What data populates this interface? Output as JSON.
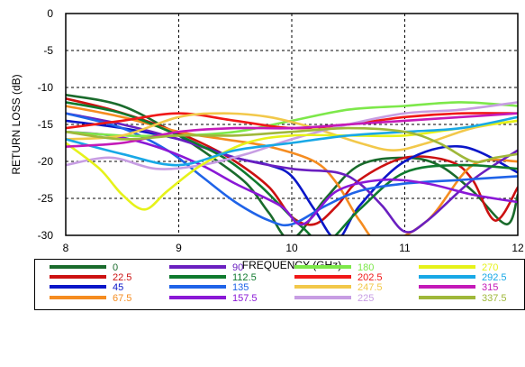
{
  "chart_data": {
    "type": "line",
    "xlabel": "FREQUENCY (GHz)",
    "ylabel": "RETURN LOSS  (dB)",
    "xlim": [
      8,
      12
    ],
    "ylim": [
      -30,
      0
    ],
    "xticks": [
      8,
      9,
      10,
      11,
      12
    ],
    "yticks": [
      0,
      -5,
      -10,
      -15,
      -20,
      -25,
      -30
    ],
    "grid": "dashed",
    "legend_position": "bottom",
    "series": [
      {
        "name": "0",
        "color": "#1a6b2c",
        "x": [
          8,
          8.5,
          9,
          9.3,
          9.6,
          9.8,
          10,
          10.3,
          10.6,
          11,
          11.3,
          11.6,
          11.9,
          12
        ],
        "y": [
          -11,
          -12.5,
          -16.5,
          -19.5,
          -23,
          -27,
          -30.5,
          -25,
          -20.5,
          -19.5,
          -20.5,
          -24,
          -28.5,
          -24.5
        ]
      },
      {
        "name": "22.5",
        "color": "#cc1111",
        "x": [
          8,
          8.4,
          8.8,
          9.2,
          9.5,
          9.8,
          10,
          10.2,
          10.4,
          10.6,
          11,
          11.4,
          11.6,
          11.8,
          12
        ],
        "y": [
          -11.5,
          -13,
          -15,
          -17.5,
          -20,
          -23.5,
          -27.5,
          -28.5,
          -26,
          -22.5,
          -19.5,
          -20,
          -22.5,
          -28,
          -23.5
        ]
      },
      {
        "name": "45",
        "color": "#0a16c8",
        "x": [
          8,
          8.5,
          9,
          9.5,
          9.8,
          10,
          10.2,
          10.4,
          10.6,
          11,
          11.5,
          12
        ],
        "y": [
          -14.5,
          -15.5,
          -17,
          -19.5,
          -20.5,
          -22,
          -26.5,
          -30.5,
          -26,
          -20,
          -18,
          -21.5
        ]
      },
      {
        "name": "67.5",
        "color": "#f58c20",
        "x": [
          8,
          8.5,
          9,
          9.4,
          9.8,
          10.2,
          10.4,
          10.6,
          10.8,
          11.2,
          11.6,
          12
        ],
        "y": [
          -12.5,
          -14,
          -16,
          -17,
          -18,
          -20,
          -23,
          -28,
          -31,
          -28,
          -20.5,
          -20
        ]
      },
      {
        "name": "90",
        "color": "#6a1fc0",
        "x": [
          8,
          8.5,
          9,
          9.5,
          10,
          10.4,
          10.6,
          10.8,
          11,
          11.2,
          11.6,
          12
        ],
        "y": [
          -13.5,
          -15,
          -17,
          -19.5,
          -21,
          -21.5,
          -23,
          -26,
          -29.5,
          -28,
          -22.5,
          -18.5
        ]
      },
      {
        "name": "112.5",
        "color": "#0f7a2e",
        "x": [
          8,
          8.5,
          9,
          9.4,
          9.7,
          9.9,
          10.1,
          10.3,
          10.6,
          11,
          11.5,
          12
        ],
        "y": [
          -12,
          -13.5,
          -16.5,
          -19.5,
          -23,
          -26,
          -29,
          -31,
          -26.5,
          -21.5,
          -20.5,
          -21
        ]
      },
      {
        "name": "135",
        "color": "#1f63e8",
        "x": [
          8,
          8.5,
          8.9,
          9.2,
          9.5,
          9.8,
          10,
          10.3,
          10.6,
          11,
          11.5,
          12
        ],
        "y": [
          -13.5,
          -15.5,
          -18.5,
          -22,
          -25.5,
          -28,
          -28.5,
          -26,
          -24,
          -23,
          -22.5,
          -22
        ]
      },
      {
        "name": "157.5",
        "color": "#8a18d6",
        "x": [
          8,
          8.4,
          8.8,
          9.2,
          9.5,
          9.9,
          10.1,
          10.4,
          10.8,
          11.2,
          11.6,
          12
        ],
        "y": [
          -16,
          -16.5,
          -18,
          -20.5,
          -23,
          -26,
          -28.5,
          -24,
          -22.5,
          -23,
          -24.5,
          -25.5
        ]
      },
      {
        "name": "180",
        "color": "#7de84a",
        "x": [
          8,
          8.5,
          9,
          9.5,
          10,
          10.5,
          11,
          11.5,
          12
        ],
        "y": [
          -16,
          -16.5,
          -16.5,
          -16,
          -14.5,
          -13,
          -12.5,
          -12,
          -12.5
        ]
      },
      {
        "name": "202.5",
        "color": "#f01818",
        "x": [
          8,
          8.5,
          9,
          9.5,
          10,
          10.5,
          11,
          11.5,
          12
        ],
        "y": [
          -15.5,
          -14.5,
          -13.5,
          -14.5,
          -15.5,
          -15,
          -14,
          -13.5,
          -13.5
        ]
      },
      {
        "name": "247.5",
        "color": "#f2c84a",
        "x": [
          8,
          8.5,
          9,
          9.4,
          9.8,
          10.2,
          10.6,
          10.9,
          11.2,
          11.6,
          12
        ],
        "y": [
          -17,
          -16.5,
          -14,
          -13.5,
          -14,
          -15.5,
          -17.5,
          -18.5,
          -17.5,
          -15.5,
          -14.5
        ]
      },
      {
        "name": "225",
        "color": "#c79de3",
        "x": [
          8,
          8.4,
          8.8,
          9.2,
          9.6,
          10,
          10.5,
          11,
          11.5,
          12
        ],
        "y": [
          -20.5,
          -19.5,
          -21,
          -20.5,
          -19,
          -17,
          -15,
          -13.5,
          -13,
          -12
        ]
      },
      {
        "name": "270",
        "color": "#e6f21a",
        "x": [
          8,
          8.3,
          8.5,
          8.7,
          8.9,
          9.2,
          9.6,
          10,
          10.5,
          11,
          11.5,
          12
        ],
        "y": [
          -17.5,
          -21,
          -24.5,
          -26.5,
          -24,
          -20.5,
          -17.5,
          -16.5,
          -16.5,
          -16.5,
          -15.5,
          -14.5
        ]
      },
      {
        "name": "292.5",
        "color": "#18a8e6",
        "x": [
          8,
          8.5,
          9,
          9.5,
          10,
          10.5,
          11,
          11.5,
          12
        ],
        "y": [
          -17,
          -19,
          -20.5,
          -18.5,
          -17.5,
          -16.5,
          -16,
          -15.5,
          -14
        ]
      },
      {
        "name": "315",
        "color": "#c41ab8",
        "x": [
          8,
          8.5,
          9,
          9.5,
          10,
          10.5,
          11,
          11.5,
          12
        ],
        "y": [
          -18,
          -17.5,
          -16,
          -15.5,
          -15.5,
          -15,
          -14.5,
          -14,
          -13.5
        ]
      },
      {
        "name": "337.5",
        "color": "#9fb83a",
        "x": [
          8,
          8.5,
          9,
          9.5,
          10,
          10.5,
          11,
          11.3,
          11.6,
          11.8,
          12
        ],
        "y": [
          -16,
          -17,
          -16.5,
          -16.5,
          -16,
          -15.5,
          -16,
          -17.5,
          -20,
          -19.5,
          -19
        ]
      }
    ]
  }
}
